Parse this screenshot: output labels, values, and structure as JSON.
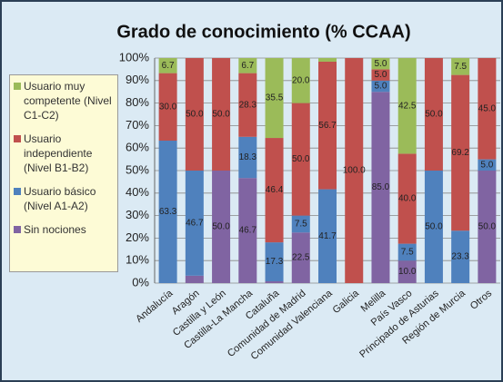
{
  "chart_data": {
    "type": "stacked_bar",
    "title": "Grado de conocimiento (% CCAA)",
    "categories": [
      "Andalucía",
      "Aragón",
      "Castilla y León",
      "Castilla-La Mancha",
      "Cataluña",
      "Comunidad de Madrid",
      "Comunidad Valenciana",
      "Galicia",
      "Melilla",
      "País Vasco",
      "Principado de Asturias",
      "Región de Murcia",
      "Otros"
    ],
    "series": [
      {
        "name": "Sin nociones",
        "color": "#8064a2",
        "values": [
          0,
          3.3,
          50,
          46.7,
          0.8,
          22.5,
          0,
          0,
          85,
          10,
          0,
          0,
          50
        ],
        "value_labels": [
          null,
          null,
          "50.0",
          "46.7",
          null,
          "22.5",
          null,
          null,
          "85.0",
          "10.0",
          null,
          null,
          "50.0"
        ]
      },
      {
        "name": "Usuario básico (Nivel A1-A2)",
        "color": "#4f81bd",
        "values": [
          63.3,
          46.7,
          0,
          18.3,
          17.3,
          7.5,
          41.7,
          0,
          5,
          7.5,
          50,
          23.3,
          5
        ],
        "value_labels": [
          "63.3",
          "46.7",
          null,
          "18.3",
          "17.3",
          "7.5",
          "41.7",
          null,
          "5.0",
          "7.5",
          "50.0",
          "23.3",
          "5.0"
        ]
      },
      {
        "name": "Usuario independiente (Nivel B1-B2)",
        "color": "#c0504d",
        "values": [
          30,
          50,
          50,
          28.3,
          46.4,
          50,
          56.7,
          100,
          5,
          40,
          50,
          69.2,
          45
        ],
        "value_labels": [
          "30.0",
          "50.0",
          "50.0",
          "28.3",
          "46.4",
          "50.0",
          "56.7",
          "100.0",
          "5.0",
          "40.0",
          "50.0",
          "69.2",
          "45.0"
        ]
      },
      {
        "name": "Usuario muy competente (Nivel C1-C2)",
        "color": "#9bbb59",
        "values": [
          6.7,
          0,
          0,
          6.7,
          35.5,
          20,
          1.6,
          0,
          5,
          42.5,
          0,
          7.5,
          0
        ],
        "value_labels": [
          "6.7",
          null,
          null,
          "6.7",
          "35.5",
          "20.0",
          null,
          null,
          "5.0",
          "42.5",
          null,
          "7.5",
          null
        ]
      }
    ],
    "ylim": [
      0,
      100
    ],
    "yticks": [
      {
        "value": 0,
        "label": "0%"
      },
      {
        "value": 10,
        "label": "10%"
      },
      {
        "value": 20,
        "label": "20%"
      },
      {
        "value": 30,
        "label": "30%"
      },
      {
        "value": 40,
        "label": "40%"
      },
      {
        "value": 50,
        "label": "50%"
      },
      {
        "value": 60,
        "label": "60%"
      },
      {
        "value": 70,
        "label": "70%"
      },
      {
        "value": 80,
        "label": "80%"
      },
      {
        "value": 90,
        "label": "90%"
      },
      {
        "value": 100,
        "label": "100%"
      }
    ],
    "grid": true,
    "legend": "left"
  }
}
